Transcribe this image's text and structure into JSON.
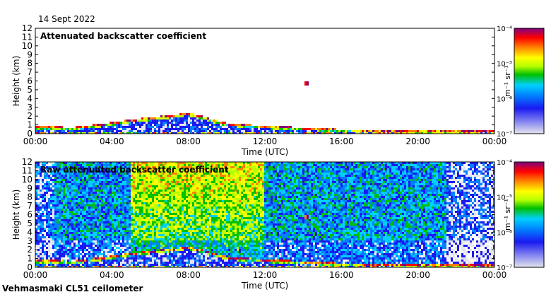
{
  "header": {
    "date": "14 Sept 2022"
  },
  "footer": {
    "instrument": "Vehmasmaki CL51 ceilometer"
  },
  "colors": {
    "scale": [
      "#e4e4ec",
      "#1a1af0",
      "#0080ff",
      "#00d0ff",
      "#00c000",
      "#b8ff00",
      "#ffff00",
      "#ff8000",
      "#ff0000",
      "#800080"
    ]
  },
  "chart_data": [
    {
      "type": "heatmap",
      "title": "Attenuated backscatter coefficient",
      "xlabel": "Time (UTC)",
      "ylabel": "Height (km)",
      "x_ticks": [
        "00:00",
        "04:00",
        "08:00",
        "12:00",
        "16:00",
        "20:00",
        "00:00"
      ],
      "y_ticks": [
        "0",
        "1",
        "2",
        "3",
        "4",
        "5",
        "6",
        "7",
        "8",
        "9",
        "10",
        "11",
        "12"
      ],
      "xlim_hours": [
        0,
        24
      ],
      "ylim": [
        0,
        12
      ],
      "colorbar": {
        "label": "m⁻¹ sr⁻¹",
        "ticks": [
          "10⁻⁷",
          "10⁻⁶",
          "10⁻⁵",
          "10⁻⁴"
        ],
        "scale": "log",
        "range": [
          1e-07,
          0.0001
        ]
      },
      "boundary_layer_top_km": {
        "hours": [
          0,
          2,
          3,
          5,
          7.5,
          8,
          10,
          12,
          14,
          16,
          20,
          24
        ],
        "km": [
          0.8,
          0.75,
          1.0,
          1.6,
          2.2,
          2.4,
          1.2,
          0.9,
          0.7,
          0.5,
          0.35,
          0.4
        ]
      },
      "feature": {
        "hours": 14.2,
        "km": [
          5.5,
          6.0
        ]
      }
    },
    {
      "type": "heatmap",
      "title": "Raw attenuated backscatter coefficient",
      "xlabel": "Time (UTC)",
      "ylabel": "Height (km)",
      "x_ticks": [
        "00:00",
        "04:00",
        "08:00",
        "12:00",
        "16:00",
        "20:00",
        "00:00"
      ],
      "y_ticks": [
        "0",
        "1",
        "2",
        "3",
        "4",
        "5",
        "6",
        "7",
        "8",
        "9",
        "10",
        "11",
        "12"
      ],
      "xlim_hours": [
        0,
        24
      ],
      "ylim": [
        0,
        12
      ],
      "colorbar": {
        "label": "m⁻¹ sr⁻¹",
        "ticks": [
          "10⁻⁷",
          "10⁻⁶",
          "10⁻⁵",
          "10⁻⁴"
        ],
        "scale": "log",
        "range": [
          1e-07,
          0.0001
        ]
      },
      "boundary_layer_top_km": {
        "hours": [
          0,
          2,
          3,
          5,
          7.5,
          8,
          10,
          12,
          14,
          16,
          20,
          24
        ],
        "km": [
          0.8,
          0.75,
          1.0,
          1.6,
          2.2,
          2.4,
          1.2,
          0.9,
          0.7,
          0.5,
          0.35,
          0.4
        ]
      },
      "feature": {
        "hours": 14.2,
        "km": [
          5.5,
          6.0
        ]
      }
    }
  ]
}
